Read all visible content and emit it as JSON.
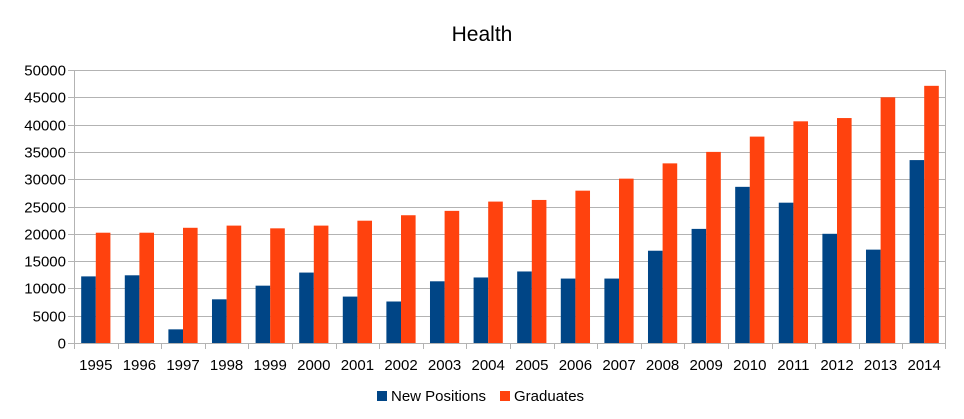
{
  "chart_data": {
    "type": "bar",
    "title": "Health",
    "xlabel": "",
    "ylabel": "",
    "ylim": [
      0,
      50000
    ],
    "yticks": [
      0,
      5000,
      10000,
      15000,
      20000,
      25000,
      30000,
      35000,
      40000,
      45000,
      50000
    ],
    "grid": true,
    "legend_position": "bottom",
    "categories": [
      "1995",
      "1996",
      "1997",
      "1998",
      "1999",
      "2000",
      "2001",
      "2002",
      "2003",
      "2004",
      "2005",
      "2006",
      "2007",
      "2008",
      "2009",
      "2010",
      "2011",
      "2012",
      "2013",
      "2014"
    ],
    "series": [
      {
        "name": "New Positions",
        "color": "#004586",
        "values": [
          12200,
          12400,
          2500,
          8000,
          10500,
          12900,
          8500,
          7600,
          11300,
          12000,
          13100,
          11800,
          11800,
          16900,
          20900,
          28600,
          25700,
          20000,
          17100,
          33500
        ]
      },
      {
        "name": "Graduates",
        "color": "#ff420e",
        "values": [
          20200,
          20200,
          21100,
          21500,
          21000,
          21500,
          22400,
          23400,
          24200,
          25900,
          26200,
          27900,
          30100,
          32900,
          35000,
          37800,
          40600,
          41200,
          45000,
          47100
        ]
      }
    ]
  }
}
